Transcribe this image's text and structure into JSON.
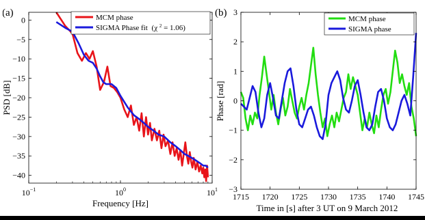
{
  "chart_data": [
    {
      "type": "line",
      "panel_label": "(a)",
      "xlabel": "Frequency [Hz]",
      "ylabel": "PSD [dB]",
      "xscale": "log",
      "xlim": [
        0.1,
        10
      ],
      "ylim": [
        -42,
        2
      ],
      "xticks": [
        0.1,
        1,
        10
      ],
      "xtick_labels": [
        {
          "base": "10",
          "exp": "−1"
        },
        {
          "base": "10",
          "exp": "0"
        },
        {
          "base": "10",
          "exp": "1"
        }
      ],
      "yticks": [
        0,
        -5,
        -10,
        -15,
        -20,
        -25,
        -30,
        -35,
        -40
      ],
      "ytick_labels": [
        "0",
        "−5",
        "−10",
        "−15",
        "−20",
        "−25",
        "−30",
        "−35",
        "−40"
      ],
      "grid": false,
      "legend": "top-right",
      "legend_math": {
        "prefix": "(χ",
        "sup": "2",
        "suffix": " = 1.06)"
      },
      "series": [
        {
          "name": "MCM phase",
          "color": "#e8141a",
          "x": [
            0.2,
            0.25,
            0.3,
            0.34,
            0.38,
            0.42,
            0.46,
            0.5,
            0.55,
            0.6,
            0.66,
            0.72,
            0.78,
            0.85,
            0.92,
            1.0,
            1.1,
            1.2,
            1.3,
            1.4,
            1.5,
            1.6,
            1.7,
            1.8,
            1.9,
            2.0,
            2.1,
            2.2,
            2.35,
            2.5,
            2.65,
            2.8,
            2.95,
            3.1,
            3.3,
            3.5,
            3.7,
            3.9,
            4.1,
            4.3,
            4.5,
            4.7,
            4.9,
            5.1,
            5.3,
            5.5,
            5.7,
            5.9,
            6.1,
            6.3,
            6.6,
            6.9,
            7.2,
            7.5,
            7.8,
            8.0,
            8.2,
            8.4,
            8.6,
            8.8,
            9.0
          ],
          "y": [
            2.0,
            -1.5,
            -3.5,
            -8.5,
            -10.5,
            -8.5,
            -10.0,
            -8.0,
            -12.0,
            -18.0,
            -16.0,
            -12.0,
            -17.0,
            -17.5,
            -18.5,
            -20.0,
            -23.0,
            -25.0,
            -22.0,
            -27.0,
            -25.0,
            -28.5,
            -24.0,
            -30.0,
            -25.0,
            -29.5,
            -26.5,
            -31.0,
            -28.0,
            -31.0,
            -28.5,
            -33.0,
            -29.5,
            -32.5,
            -31.0,
            -34.5,
            -31.5,
            -35.0,
            -33.0,
            -36.0,
            -33.5,
            -37.5,
            -34.5,
            -31.5,
            -35.0,
            -37.0,
            -34.0,
            -36.5,
            -38.0,
            -35.5,
            -38.5,
            -36.5,
            -39.0,
            -37.5,
            -39.5,
            -38.0,
            -40.5,
            -38.5,
            -41.5,
            -37.5,
            -40.5
          ]
        },
        {
          "name": "SIGMA Phase fit",
          "color": "#1a1adc",
          "x": [
            0.2,
            0.25,
            0.3,
            0.35,
            0.4,
            0.45,
            0.5,
            0.55,
            0.6,
            0.65,
            0.7,
            0.8,
            0.9,
            1.0,
            1.2,
            1.4,
            1.6,
            1.8,
            2.0,
            2.3,
            2.6,
            3.0,
            3.5,
            4.0,
            4.5,
            5.0,
            5.5,
            6.0,
            6.5,
            7.0,
            7.5,
            8.0,
            8.5,
            9.0
          ],
          "y": [
            -0.5,
            -2.0,
            -3.0,
            -6.0,
            -9.0,
            -10.5,
            -11.0,
            -12.5,
            -14.5,
            -16.0,
            -16.5,
            -16.5,
            -17.5,
            -19.5,
            -22.5,
            -24.5,
            -25.5,
            -26.5,
            -27.5,
            -28.5,
            -29.5,
            -30.0,
            -31.5,
            -32.5,
            -33.5,
            -34.5,
            -35.0,
            -35.5,
            -36.0,
            -36.5,
            -37.0,
            -37.5,
            -37.5,
            -38.0
          ]
        }
      ]
    },
    {
      "type": "line",
      "panel_label": "(b)",
      "xlabel": "Time in [s] after 3 UT on 9 March 2012",
      "ylabel": "Phase [rad]",
      "xlim": [
        1715,
        1745
      ],
      "ylim": [
        -3,
        3
      ],
      "xticks": [
        1715,
        1720,
        1725,
        1730,
        1735,
        1740,
        1745
      ],
      "xtick_labels": [
        "1715",
        "1720",
        "1725",
        "1730",
        "1735",
        "1740",
        "1745"
      ],
      "yticks": [
        -3,
        -2,
        -1,
        0,
        1,
        2,
        3
      ],
      "ytick_labels": [
        "−3",
        "−2",
        "−1",
        "0",
        "1",
        "2",
        "3"
      ],
      "grid": false,
      "legend": "top-right",
      "series": [
        {
          "name": "MCM phase",
          "color": "#22dd11",
          "x": [
            1715.0,
            1715.4,
            1715.8,
            1716.2,
            1716.6,
            1717.0,
            1717.4,
            1717.8,
            1718.2,
            1718.6,
            1719.0,
            1719.4,
            1719.8,
            1720.2,
            1720.6,
            1721.0,
            1721.4,
            1721.8,
            1722.2,
            1722.6,
            1723.0,
            1723.4,
            1723.8,
            1724.2,
            1724.6,
            1725.0,
            1725.4,
            1725.8,
            1726.2,
            1726.6,
            1727.0,
            1727.4,
            1727.8,
            1728.2,
            1728.6,
            1729.0,
            1729.4,
            1729.8,
            1730.2,
            1730.6,
            1731.0,
            1731.4,
            1731.8,
            1732.2,
            1732.6,
            1733.0,
            1733.4,
            1733.8,
            1734.2,
            1734.6,
            1735.0,
            1735.4,
            1735.8,
            1736.2,
            1736.6,
            1737.0,
            1737.4,
            1737.8,
            1738.2,
            1738.6,
            1739.0,
            1739.4,
            1739.8,
            1740.2,
            1740.6,
            1741.0,
            1741.4,
            1741.8,
            1742.2,
            1742.6,
            1743.0,
            1743.4,
            1743.8,
            1744.2,
            1744.6,
            1745.0
          ],
          "y": [
            0.3,
            0.1,
            -0.6,
            -1.0,
            -0.5,
            -0.8,
            -0.4,
            -0.6,
            0.2,
            0.8,
            1.5,
            0.9,
            0.3,
            -0.3,
            0.2,
            -0.4,
            -0.8,
            -0.3,
            0.1,
            -0.5,
            -0.2,
            0.4,
            0.0,
            -0.4,
            -0.6,
            -0.2,
            0.1,
            -0.3,
            0.2,
            0.6,
            1.2,
            1.8,
            0.9,
            0.2,
            -0.4,
            -0.9,
            -0.6,
            -1.2,
            -0.8,
            -0.5,
            -0.9,
            -0.4,
            -0.7,
            -0.3,
            0.1,
            0.3,
            0.9,
            0.4,
            0.8,
            0.5,
            0.2,
            -0.4,
            -1.0,
            -0.6,
            -0.9,
            -0.4,
            -0.8,
            -1.1,
            -0.5,
            -0.9,
            -0.3,
            0.2,
            0.4,
            -0.1,
            0.3,
            1.0,
            1.7,
            1.3,
            0.6,
            0.9,
            0.5,
            0.2,
            0.6,
            -0.2,
            -0.6,
            -1.2
          ]
        },
        {
          "name": "SIGMA phase",
          "color": "#1a1adc",
          "x": [
            1715.0,
            1715.5,
            1716.0,
            1716.5,
            1717.0,
            1717.5,
            1718.0,
            1718.5,
            1719.0,
            1719.5,
            1720.0,
            1720.5,
            1721.0,
            1721.5,
            1722.0,
            1722.5,
            1723.0,
            1723.5,
            1724.0,
            1724.5,
            1725.0,
            1725.5,
            1726.0,
            1726.5,
            1727.0,
            1727.5,
            1728.0,
            1728.5,
            1729.0,
            1729.5,
            1730.0,
            1730.5,
            1731.0,
            1731.5,
            1732.0,
            1732.5,
            1733.0,
            1733.5,
            1734.0,
            1734.5,
            1735.0,
            1735.5,
            1736.0,
            1736.5,
            1737.0,
            1737.5,
            1738.0,
            1738.5,
            1739.0,
            1739.5,
            1740.0,
            1740.5,
            1741.0,
            1741.5,
            1742.0,
            1742.5,
            1743.0,
            1743.5,
            1744.0,
            1744.5,
            1745.0
          ],
          "y": [
            -0.1,
            -0.2,
            -0.3,
            0.1,
            0.5,
            0.3,
            -0.4,
            -0.9,
            -0.6,
            0.2,
            0.6,
            0.1,
            -0.5,
            -0.6,
            0.0,
            0.6,
            1.0,
            1.1,
            0.5,
            -0.3,
            -0.8,
            -0.9,
            -0.6,
            -0.3,
            -0.2,
            -0.5,
            -0.9,
            -1.2,
            -1.3,
            -0.8,
            0.2,
            0.6,
            0.8,
            1.0,
            0.7,
            0.1,
            -0.3,
            -0.4,
            0.0,
            0.5,
            0.7,
            0.2,
            -0.4,
            -0.9,
            -1.0,
            -0.8,
            -0.2,
            0.3,
            0.4,
            0.0,
            -0.6,
            -0.9,
            -1.0,
            -0.8,
            -0.4,
            0.0,
            0.2,
            -0.1,
            -0.5,
            0.8,
            2.3
          ]
        }
      ]
    }
  ]
}
